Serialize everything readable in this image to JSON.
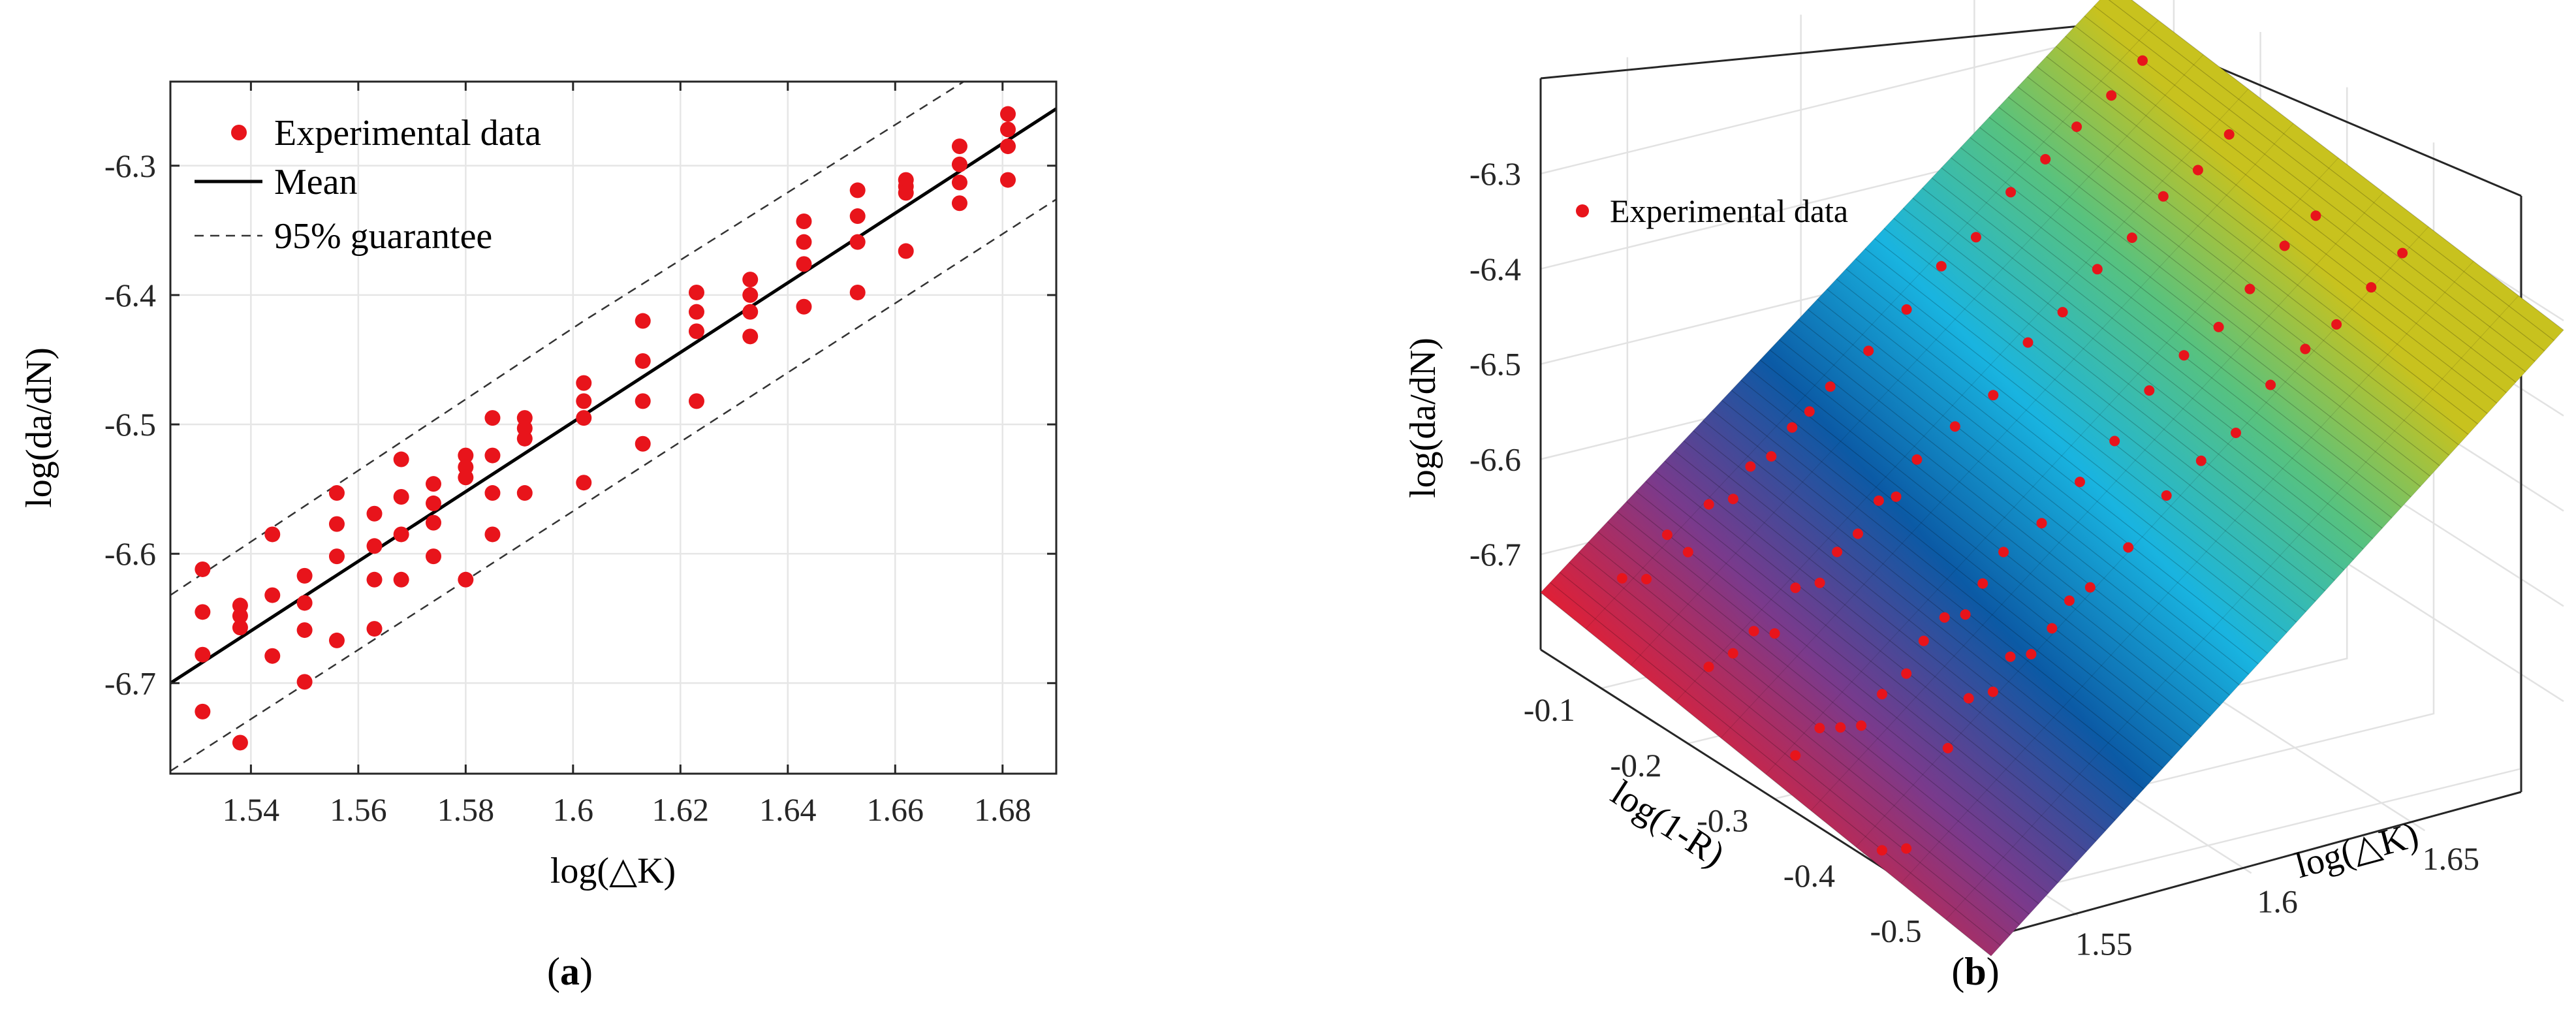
{
  "panels": [
    {
      "label_open": "(",
      "label": "a",
      "label_close": ")"
    },
    {
      "label_open": "(",
      "label": "b",
      "label_close": ")"
    }
  ],
  "colors": {
    "marker": "#e8141b",
    "mean_line": "#000000",
    "guarantee_line": "#333333",
    "grid": "#e6e6e6",
    "axis": "#262626",
    "surface_low": "#ee1c2a",
    "surface_mid_purple": "#7a3a8c",
    "surface_dark_blue": "#0b5aa5",
    "surface_cyan": "#19b4e0",
    "surface_green": "#57c27f",
    "surface_yellow": "#c8c21e"
  },
  "chart_data": [
    {
      "type": "scatter",
      "xlabel": "log(△K)",
      "ylabel": "log(da/dN)",
      "xlim": [
        1.525,
        1.69
      ],
      "ylim": [
        -6.77,
        -6.235
      ],
      "xticks": [
        "1.54",
        "1.56",
        "1.58",
        "1.6",
        "1.62",
        "1.64",
        "1.66",
        "1.68"
      ],
      "xtick_values": [
        1.54,
        1.56,
        1.58,
        1.6,
        1.62,
        1.64,
        1.66,
        1.68
      ],
      "yticks": [
        "-6.3",
        "-6.4",
        "-6.5",
        "-6.6",
        "-6.7"
      ],
      "ytick_values": [
        -6.3,
        -6.4,
        -6.5,
        -6.6,
        -6.7
      ],
      "legend_position": "top-left",
      "legend": [
        "Experimental data",
        "Mean",
        "95% guarantee"
      ],
      "series": [
        {
          "name": "Experimental data",
          "kind": "markers",
          "points": [
            [
              1.531,
              -6.612
            ],
            [
              1.531,
              -6.645
            ],
            [
              1.531,
              -6.678
            ],
            [
              1.531,
              -6.722
            ],
            [
              1.538,
              -6.64
            ],
            [
              1.538,
              -6.648
            ],
            [
              1.538,
              -6.657
            ],
            [
              1.538,
              -6.746
            ],
            [
              1.544,
              -6.585
            ],
            [
              1.544,
              -6.632
            ],
            [
              1.544,
              -6.679
            ],
            [
              1.55,
              -6.617
            ],
            [
              1.55,
              -6.638
            ],
            [
              1.55,
              -6.659
            ],
            [
              1.55,
              -6.699
            ],
            [
              1.556,
              -6.553
            ],
            [
              1.556,
              -6.577
            ],
            [
              1.556,
              -6.602
            ],
            [
              1.556,
              -6.667
            ],
            [
              1.563,
              -6.569
            ],
            [
              1.563,
              -6.594
            ],
            [
              1.563,
              -6.62
            ],
            [
              1.563,
              -6.658
            ],
            [
              1.568,
              -6.527
            ],
            [
              1.568,
              -6.556
            ],
            [
              1.568,
              -6.585
            ],
            [
              1.568,
              -6.62
            ],
            [
              1.574,
              -6.546
            ],
            [
              1.574,
              -6.561
            ],
            [
              1.574,
              -6.576
            ],
            [
              1.574,
              -6.602
            ],
            [
              1.58,
              -6.524
            ],
            [
              1.58,
              -6.533
            ],
            [
              1.58,
              -6.541
            ],
            [
              1.58,
              -6.62
            ],
            [
              1.585,
              -6.495
            ],
            [
              1.585,
              -6.524
            ],
            [
              1.585,
              -6.553
            ],
            [
              1.585,
              -6.585
            ],
            [
              1.591,
              -6.495
            ],
            [
              1.591,
              -6.503
            ],
            [
              1.591,
              -6.511
            ],
            [
              1.591,
              -6.553
            ],
            [
              1.602,
              -6.468
            ],
            [
              1.602,
              -6.482
            ],
            [
              1.602,
              -6.495
            ],
            [
              1.602,
              -6.545
            ],
            [
              1.613,
              -6.42
            ],
            [
              1.613,
              -6.451
            ],
            [
              1.613,
              -6.482
            ],
            [
              1.613,
              -6.515
            ],
            [
              1.623,
              -6.398
            ],
            [
              1.623,
              -6.413
            ],
            [
              1.623,
              -6.428
            ],
            [
              1.623,
              -6.482
            ],
            [
              1.633,
              -6.388
            ],
            [
              1.633,
              -6.4
            ],
            [
              1.633,
              -6.413
            ],
            [
              1.633,
              -6.432
            ],
            [
              1.643,
              -6.343
            ],
            [
              1.643,
              -6.359
            ],
            [
              1.643,
              -6.376
            ],
            [
              1.643,
              -6.409
            ],
            [
              1.653,
              -6.319
            ],
            [
              1.653,
              -6.339
            ],
            [
              1.653,
              -6.359
            ],
            [
              1.653,
              -6.398
            ],
            [
              1.662,
              -6.311
            ],
            [
              1.662,
              -6.316
            ],
            [
              1.662,
              -6.321
            ],
            [
              1.662,
              -6.366
            ],
            [
              1.672,
              -6.285
            ],
            [
              1.672,
              -6.299
            ],
            [
              1.672,
              -6.313
            ],
            [
              1.672,
              -6.329
            ],
            [
              1.681,
              -6.26
            ],
            [
              1.681,
              -6.272
            ],
            [
              1.681,
              -6.285
            ],
            [
              1.681,
              -6.311
            ]
          ]
        },
        {
          "name": "Mean",
          "kind": "line",
          "points": [
            [
              1.525,
              -6.7
            ],
            [
              1.69,
              -6.256
            ]
          ]
        },
        {
          "name": "95% guarantee",
          "kind": "dashed",
          "points": [
            [
              1.525,
              -6.632
            ],
            [
              1.602,
              -6.42
            ],
            [
              1.69,
              -6.19
            ]
          ]
        },
        {
          "kind": "dashed",
          "points": [
            [
              1.525,
              -6.768
            ],
            [
              1.69,
              -6.326
            ]
          ]
        }
      ]
    },
    {
      "type": "surface",
      "xlabel": "log(1-R)",
      "ylabel": "log(△K)",
      "zlabel": "log(da/dN)",
      "xticks": [
        "-0.1",
        "-0.2",
        "-0.3",
        "-0.4",
        "-0.5"
      ],
      "xtick_values": [
        -0.1,
        -0.2,
        -0.3,
        -0.4,
        -0.5
      ],
      "yticks": [
        "1.55",
        "1.6",
        "1.65"
      ],
      "ytick_values": [
        1.55,
        1.6,
        1.65
      ],
      "zticks": [
        "-6.3",
        "-6.4",
        "-6.5",
        "-6.6",
        "-6.7"
      ],
      "ztick_values": [
        -6.3,
        -6.4,
        -6.5,
        -6.6,
        -6.7
      ],
      "xlim": [
        -0.55,
        -0.03
      ],
      "ylim": [
        1.525,
        1.69
      ],
      "zlim": [
        -6.8,
        -6.2
      ],
      "legend_position": "top-left",
      "legend": [
        "Experimental data"
      ],
      "surface_corners": {
        "r_high_k_low": -6.74,
        "r_low_k_low": -6.82,
        "r_high_k_high": -6.25,
        "r_low_k_high": -6.31
      }
    }
  ]
}
